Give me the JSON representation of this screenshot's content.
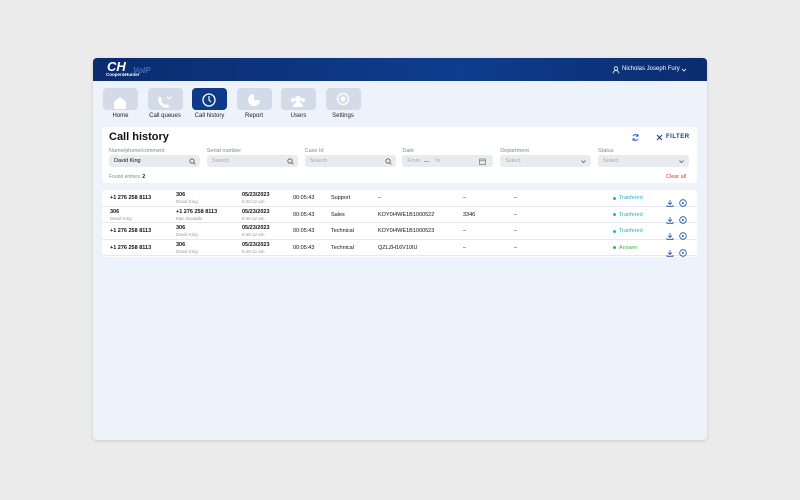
{
  "header": {
    "brand_letters": "CH",
    "brand_name": "Cooper&Hunter",
    "brand_suffix": "VoIP",
    "user": "Nicholas Joseph Fury"
  },
  "nav": [
    {
      "label": "Home"
    },
    {
      "label": "Call queues"
    },
    {
      "label": "Call history",
      "active": true
    },
    {
      "label": "Report"
    },
    {
      "label": "Users"
    },
    {
      "label": "Settings"
    }
  ],
  "page": {
    "title": "Call history",
    "filter": "FILTER"
  },
  "filters": [
    {
      "label": "Name/phone/comment",
      "value": "David King",
      "kind": "search"
    },
    {
      "label": "Serial number",
      "placeholder": "Search",
      "kind": "search"
    },
    {
      "label": "Case Id",
      "placeholder": "Search",
      "kind": "search"
    },
    {
      "label": "Date",
      "from": "From",
      "to": "To",
      "kind": "date"
    },
    {
      "label": "Department",
      "placeholder": "Select",
      "kind": "select"
    },
    {
      "label": "Status",
      "placeholder": "Select",
      "kind": "select"
    }
  ],
  "found": {
    "label": "Found entries:",
    "count": "2"
  },
  "clear": "Clear all",
  "table": {
    "rows": [
      {
        "cells": [
          {
            "main": "+1 276 258 8113"
          },
          {
            "main": "306",
            "sub": "David King"
          },
          {
            "main": "05/23/2023",
            "sub": "8:46:12 am"
          },
          {
            "main": "00:05:43"
          },
          {
            "main": "Support"
          },
          {
            "main": "–"
          },
          {
            "main": "–"
          },
          {
            "main": "–"
          }
        ],
        "status": "Tranfered",
        "status_color": "#1fb5c8"
      },
      {
        "cells": [
          {
            "main": "306",
            "sub": "David King"
          },
          {
            "main": "+1 276 258 8113",
            "sub": "Mac Donalds"
          },
          {
            "main": "05/23/2023",
            "sub": "8:46:12 am"
          },
          {
            "main": "00:05:43"
          },
          {
            "main": "Sales"
          },
          {
            "main": "KOY0I4WE1B1000522"
          },
          {
            "main": "3346"
          },
          {
            "main": "–"
          }
        ],
        "status": "Tranfered",
        "status_color": "#1fb5c8"
      },
      {
        "cells": [
          {
            "main": "+1 276 258 8113"
          },
          {
            "main": "306",
            "sub": "David King"
          },
          {
            "main": "05/23/2023",
            "sub": "8:46:12 am"
          },
          {
            "main": "00:05:43"
          },
          {
            "main": "Technical"
          },
          {
            "main": "KOY0I4WE1B1000523"
          },
          {
            "main": "–"
          },
          {
            "main": "–"
          }
        ],
        "status": "Tranfered",
        "status_color": "#1fb5c8"
      },
      {
        "cells": [
          {
            "main": "+1 276 258 8113"
          },
          {
            "main": "306",
            "sub": "David King"
          },
          {
            "main": "05/23/2023",
            "sub": "8:46:12 am"
          },
          {
            "main": "00:05:43"
          },
          {
            "main": "Technical"
          },
          {
            "main": "QZLZH16V10IU"
          },
          {
            "main": "–"
          },
          {
            "main": "–"
          }
        ],
        "status": "Answer",
        "status_color": "#3db54a"
      }
    ]
  }
}
